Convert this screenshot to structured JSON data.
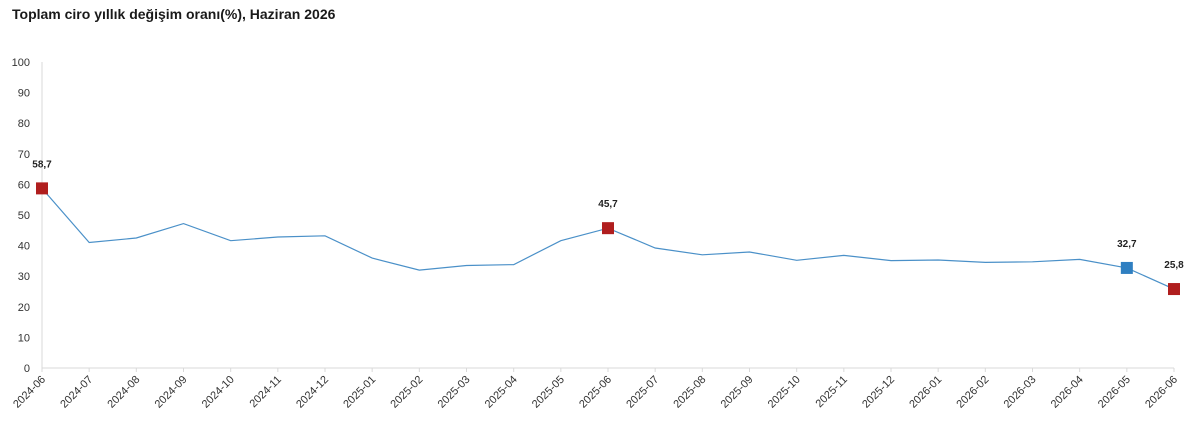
{
  "chart_data": {
    "type": "line",
    "title": "Toplam ciro yıllık değişim oranı(%), Haziran 2026",
    "xlabel": "",
    "ylabel": "",
    "ylim": [
      0,
      100
    ],
    "yticks": [
      "0",
      "10",
      "20",
      "30",
      "40",
      "50",
      "60",
      "70",
      "80",
      "90",
      "100"
    ],
    "categories": [
      "2024-06",
      "2024-07",
      "2024-08",
      "2024-09",
      "2024-10",
      "2024-11",
      "2024-12",
      "2025-01",
      "2025-02",
      "2025-03",
      "2025-04",
      "2025-05",
      "2025-06",
      "2025-07",
      "2025-08",
      "2025-09",
      "2025-10",
      "2025-11",
      "2025-12",
      "2026-01",
      "2026-02",
      "2026-03",
      "2026-04",
      "2026-05",
      "2026-06"
    ],
    "series": [
      {
        "values": [
          58.7,
          41.0,
          42.5,
          47.2,
          41.6,
          42.8,
          43.2,
          35.9,
          32.0,
          33.5,
          33.8,
          41.6,
          45.7,
          39.2,
          37.0,
          37.9,
          35.2,
          36.8,
          35.1,
          35.3,
          34.5,
          34.7,
          35.5,
          32.7,
          25.8
        ],
        "color": "#4a90c8"
      }
    ],
    "highlights": [
      {
        "index": 0,
        "label": "58,7",
        "color": "#b01e1e"
      },
      {
        "index": 12,
        "label": "45,7",
        "color": "#b01e1e"
      },
      {
        "index": 23,
        "label": "32,7",
        "color": "#2f7fc1"
      },
      {
        "index": 24,
        "label": "25,8",
        "color": "#b01e1e"
      }
    ],
    "grid": false,
    "legend": "none"
  }
}
